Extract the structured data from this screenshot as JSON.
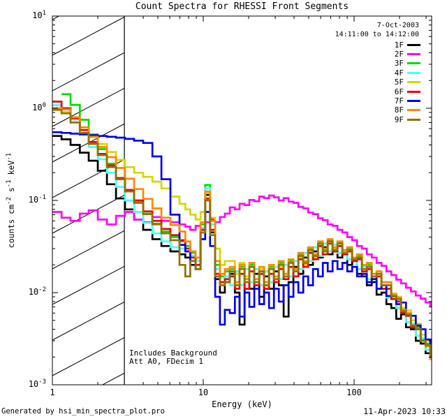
{
  "chart_data": {
    "type": "line",
    "title": "Count Spectra for RHESSI Front Segments",
    "xlabel": "Energy (keV)",
    "ylabel_parts": [
      {
        "t": "counts cm",
        "sup": "-2"
      },
      {
        "t": " s",
        "sup": "-1"
      },
      {
        "t": " keV",
        "sup": "-1"
      }
    ],
    "date_label": "7-Oct-2003",
    "time_label": "14:11:00 to 14:12:00",
    "annotations": [
      "Includes Background",
      "Att A0, FDecim 1"
    ],
    "x_scale": "log",
    "y_scale": "log",
    "x_range": [
      1,
      326
    ],
    "y_range": [
      0.001,
      10
    ],
    "hatch_region_keV": [
      1,
      3
    ],
    "attenuator_boundary_keV": 3,
    "x_ticks": [
      {
        "value": 1,
        "label": "1"
      },
      {
        "value": 10,
        "label": "10"
      },
      {
        "value": 100,
        "label": "100"
      }
    ],
    "y_ticks": [
      {
        "value": 10,
        "base": "10",
        "exp": "1"
      },
      {
        "value": 1,
        "base": "10",
        "exp": "0"
      },
      {
        "value": 0.1,
        "base": "10",
        "exp": "-1"
      },
      {
        "value": 0.01,
        "base": "10",
        "exp": "-2"
      },
      {
        "value": 0.001,
        "base": "10",
        "exp": "-3"
      }
    ],
    "energies_keV": [
      1.0,
      1.15,
      1.32,
      1.52,
      1.74,
      2.0,
      2.3,
      2.64,
      3.03,
      3.48,
      4.0,
      4.6,
      5.28,
      6.06,
      6.96,
      7.6,
      8.2,
      8.9,
      9.6,
      10.3,
      11.1,
      12.0,
      12.9,
      13.9,
      15.0,
      16.2,
      17.4,
      18.8,
      20.2,
      21.8,
      23.5,
      25.3,
      27.3,
      29.4,
      31.7,
      34.1,
      36.8,
      39.6,
      42.7,
      46.0,
      49.6,
      53.4,
      57.6,
      62.0,
      66.8,
      72.0,
      77.6,
      83.6,
      90.1,
      97.1,
      104.6,
      112.7,
      121.4,
      130.8,
      141.0,
      151.9,
      163.7,
      176.4,
      190.1,
      204.8,
      220.7,
      237.8,
      256.2,
      276.1,
      297.5,
      320.0
    ],
    "series": [
      {
        "name": "1F",
        "color": "#000000",
        "values": [
          0.5,
          0.46,
          0.4,
          0.33,
          0.27,
          0.21,
          0.15,
          0.105,
          0.08,
          0.062,
          0.048,
          0.038,
          0.032,
          0.028,
          0.026,
          0.024,
          0.02,
          0.018,
          0.045,
          0.115,
          0.045,
          0.014,
          0.01,
          0.013,
          0.016,
          0.01,
          0.0045,
          0.014,
          0.011,
          0.016,
          0.009,
          0.015,
          0.011,
          0.017,
          0.012,
          0.0055,
          0.013,
          0.019,
          0.016,
          0.024,
          0.02,
          0.028,
          0.024,
          0.031,
          0.026,
          0.03,
          0.024,
          0.026,
          0.02,
          0.022,
          0.016,
          0.015,
          0.012,
          0.013,
          0.0095,
          0.01,
          0.0075,
          0.0068,
          0.0052,
          0.0058,
          0.0042,
          0.004,
          0.003,
          0.0028,
          0.0022,
          0.0019
        ]
      },
      {
        "name": "2F",
        "color": "#ff00ff",
        "values": [
          0.075,
          0.065,
          0.06,
          0.072,
          0.078,
          0.062,
          0.055,
          0.068,
          0.075,
          0.062,
          0.058,
          0.066,
          0.06,
          0.058,
          0.055,
          0.052,
          0.048,
          0.053,
          0.05,
          0.058,
          0.062,
          0.058,
          0.066,
          0.072,
          0.084,
          0.08,
          0.092,
          0.089,
          0.101,
          0.098,
          0.11,
          0.106,
          0.113,
          0.108,
          0.1,
          0.106,
          0.097,
          0.094,
          0.085,
          0.082,
          0.074,
          0.071,
          0.064,
          0.061,
          0.055,
          0.053,
          0.048,
          0.045,
          0.04,
          0.037,
          0.032,
          0.03,
          0.026,
          0.024,
          0.021,
          0.0195,
          0.017,
          0.0155,
          0.0138,
          0.0126,
          0.0113,
          0.0103,
          0.0093,
          0.0086,
          0.0078,
          0.0071
        ]
      },
      {
        "name": "3F",
        "color": "#00dd00",
        "values": [
          null,
          1.42,
          1.09,
          0.75,
          0.52,
          0.36,
          0.25,
          0.175,
          0.125,
          0.095,
          0.072,
          0.056,
          0.046,
          0.04,
          0.036,
          0.032,
          0.027,
          0.024,
          0.055,
          0.147,
          0.06,
          0.02,
          0.015,
          0.017,
          0.018,
          0.013,
          0.019,
          0.014,
          0.02,
          0.013,
          0.018,
          0.012,
          0.019,
          0.015,
          0.021,
          0.016,
          0.022,
          0.018,
          0.026,
          0.022,
          0.03,
          0.026,
          0.035,
          0.029,
          0.037,
          0.03,
          0.035,
          0.028,
          0.03,
          0.023,
          0.025,
          0.019,
          0.02,
          0.015,
          0.016,
          0.012,
          0.012,
          0.009,
          0.0085,
          0.0062,
          0.006,
          0.0045,
          0.0042,
          0.0031,
          0.0028,
          0.0022
        ]
      },
      {
        "name": "4F",
        "color": "#45ffff",
        "values": [
          1.08,
          0.92,
          0.7,
          0.52,
          0.38,
          0.28,
          0.2,
          0.14,
          0.1,
          0.075,
          0.057,
          0.044,
          0.036,
          0.031,
          0.03,
          0.03,
          0.025,
          0.022,
          0.05,
          0.135,
          0.055,
          0.018,
          0.013,
          0.015,
          0.012,
          0.017,
          0.012,
          0.018,
          0.013,
          0.018,
          0.012,
          0.017,
          0.013,
          0.019,
          0.014,
          0.02,
          0.015,
          0.022,
          0.018,
          0.027,
          0.022,
          0.031,
          0.025,
          0.034,
          0.028,
          0.033,
          0.027,
          0.029,
          0.023,
          0.024,
          0.018,
          0.019,
          0.014,
          0.015,
          0.011,
          0.012,
          0.0088,
          0.0092,
          0.0068,
          0.0064,
          0.0048,
          0.0046,
          0.0034,
          0.0032,
          0.0024,
          0.0021
        ]
      },
      {
        "name": "5F",
        "color": "#d6d600",
        "values": [
          1.0,
          0.9,
          0.76,
          0.62,
          0.5,
          0.41,
          0.335,
          0.275,
          0.23,
          0.2,
          0.18,
          0.16,
          0.135,
          0.11,
          0.092,
          0.08,
          0.07,
          0.062,
          0.075,
          0.12,
          0.065,
          0.03,
          0.02,
          0.022,
          0.022,
          0.016,
          0.021,
          0.015,
          0.019,
          0.014,
          0.018,
          0.013,
          0.018,
          0.014,
          0.019,
          0.015,
          0.021,
          0.017,
          0.024,
          0.02,
          0.028,
          0.024,
          0.033,
          0.028,
          0.036,
          0.03,
          0.034,
          0.028,
          0.031,
          0.024,
          0.026,
          0.02,
          0.021,
          0.016,
          0.017,
          0.013,
          0.013,
          0.0098,
          0.009,
          0.0068,
          0.0064,
          0.005,
          0.0046,
          0.0035,
          0.003,
          0.0024
        ]
      },
      {
        "name": "6F",
        "color": "#ee0000",
        "values": [
          1.18,
          1.0,
          0.78,
          0.58,
          0.43,
          0.32,
          0.24,
          0.175,
          0.13,
          0.1,
          0.076,
          0.06,
          0.049,
          0.042,
          0.037,
          0.03,
          0.024,
          0.02,
          0.048,
          0.105,
          0.048,
          0.016,
          0.013,
          0.014,
          0.015,
          0.011,
          0.016,
          0.011,
          0.017,
          0.012,
          0.016,
          0.011,
          0.016,
          0.013,
          0.018,
          0.014,
          0.019,
          0.015,
          0.023,
          0.019,
          0.027,
          0.023,
          0.032,
          0.026,
          0.034,
          0.028,
          0.032,
          0.026,
          0.028,
          0.022,
          0.023,
          0.017,
          0.018,
          0.014,
          0.015,
          0.011,
          0.011,
          0.0085,
          0.008,
          0.006,
          0.0056,
          0.0042,
          0.004,
          0.003,
          0.0026,
          0.0021
        ]
      },
      {
        "name": "7F",
        "color": "#0000ee",
        "values": [
          0.55,
          0.54,
          0.53,
          0.52,
          0.51,
          0.5,
          0.49,
          0.48,
          0.465,
          0.445,
          0.42,
          0.3,
          0.17,
          0.07,
          0.033,
          0.028,
          0.022,
          0.018,
          0.038,
          0.075,
          0.032,
          0.009,
          0.0045,
          0.0065,
          0.006,
          0.009,
          0.0055,
          0.01,
          0.007,
          0.011,
          0.0075,
          0.01,
          0.0068,
          0.011,
          0.008,
          0.012,
          0.009,
          0.013,
          0.01,
          0.015,
          0.012,
          0.018,
          0.015,
          0.021,
          0.017,
          0.022,
          0.018,
          0.021,
          0.017,
          0.019,
          0.015,
          0.016,
          0.013,
          0.014,
          0.011,
          0.012,
          0.0092,
          0.0095,
          0.0075,
          0.0078,
          0.0058,
          0.0056,
          0.0044,
          0.004,
          0.0031,
          0.0027
        ]
      },
      {
        "name": "8F",
        "color": "#ff8800",
        "values": [
          1.0,
          0.97,
          0.8,
          0.62,
          0.49,
          0.38,
          0.295,
          0.225,
          0.172,
          0.133,
          0.104,
          0.082,
          0.065,
          0.054,
          0.046,
          0.036,
          0.028,
          0.024,
          0.058,
          0.125,
          0.06,
          0.022,
          0.016,
          0.018,
          0.019,
          0.013,
          0.02,
          0.014,
          0.021,
          0.014,
          0.019,
          0.013,
          0.02,
          0.015,
          0.022,
          0.016,
          0.023,
          0.018,
          0.027,
          0.022,
          0.031,
          0.026,
          0.036,
          0.03,
          0.038,
          0.031,
          0.036,
          0.029,
          0.031,
          0.024,
          0.026,
          0.02,
          0.021,
          0.016,
          0.017,
          0.013,
          0.013,
          0.0095,
          0.0088,
          0.0065,
          0.006,
          0.0044,
          0.004,
          0.003,
          0.0026,
          0.0019
        ]
      },
      {
        "name": "9F",
        "color": "#8f7400",
        "values": [
          0.96,
          0.88,
          0.7,
          0.54,
          0.41,
          0.31,
          0.23,
          0.17,
          0.125,
          0.094,
          0.071,
          0.055,
          0.044,
          0.037,
          0.02,
          0.015,
          0.022,
          0.018,
          0.045,
          0.1,
          0.042,
          0.015,
          0.012,
          0.013,
          0.017,
          0.012,
          0.018,
          0.013,
          0.019,
          0.013,
          0.017,
          0.012,
          0.018,
          0.014,
          0.02,
          0.015,
          0.021,
          0.017,
          0.025,
          0.021,
          0.029,
          0.025,
          0.034,
          0.028,
          0.036,
          0.029,
          0.034,
          0.027,
          0.029,
          0.023,
          0.024,
          0.018,
          0.019,
          0.015,
          0.016,
          0.012,
          0.012,
          0.0092,
          0.0085,
          0.0063,
          0.0058,
          0.0044,
          0.004,
          0.003,
          0.0027,
          0.002
        ]
      }
    ]
  },
  "footer": {
    "left": "Generated by hsi_min_spectra_plot.pro",
    "right": "11-Apr-2023 10:33"
  }
}
